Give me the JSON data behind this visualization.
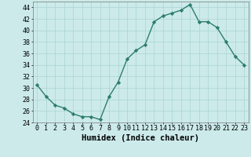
{
  "x": [
    0,
    1,
    2,
    3,
    4,
    5,
    6,
    7,
    8,
    9,
    10,
    11,
    12,
    13,
    14,
    15,
    16,
    17,
    18,
    19,
    20,
    21,
    22,
    23
  ],
  "y": [
    30.5,
    28.5,
    27.0,
    26.5,
    25.5,
    25.0,
    25.0,
    24.5,
    28.5,
    31.0,
    35.0,
    36.5,
    37.5,
    41.5,
    42.5,
    43.0,
    43.5,
    44.5,
    41.5,
    41.5,
    40.5,
    38.0,
    35.5,
    34.0
  ],
  "line_color": "#2d7d6e",
  "marker": "D",
  "marker_size": 2.2,
  "bg_color": "#cceaea",
  "grid_color": "#aad4d4",
  "xlabel": "Humidex (Indice chaleur)",
  "xlabel_fontsize": 7.5,
  "ylim": [
    24,
    45
  ],
  "xlim": [
    -0.5,
    23.5
  ],
  "yticks": [
    24,
    26,
    28,
    30,
    32,
    34,
    36,
    38,
    40,
    42,
    44
  ],
  "xticks": [
    0,
    1,
    2,
    3,
    4,
    5,
    6,
    7,
    8,
    9,
    10,
    11,
    12,
    13,
    14,
    15,
    16,
    17,
    18,
    19,
    20,
    21,
    22,
    23
  ],
  "tick_fontsize": 6.0,
  "line_width": 1.0
}
